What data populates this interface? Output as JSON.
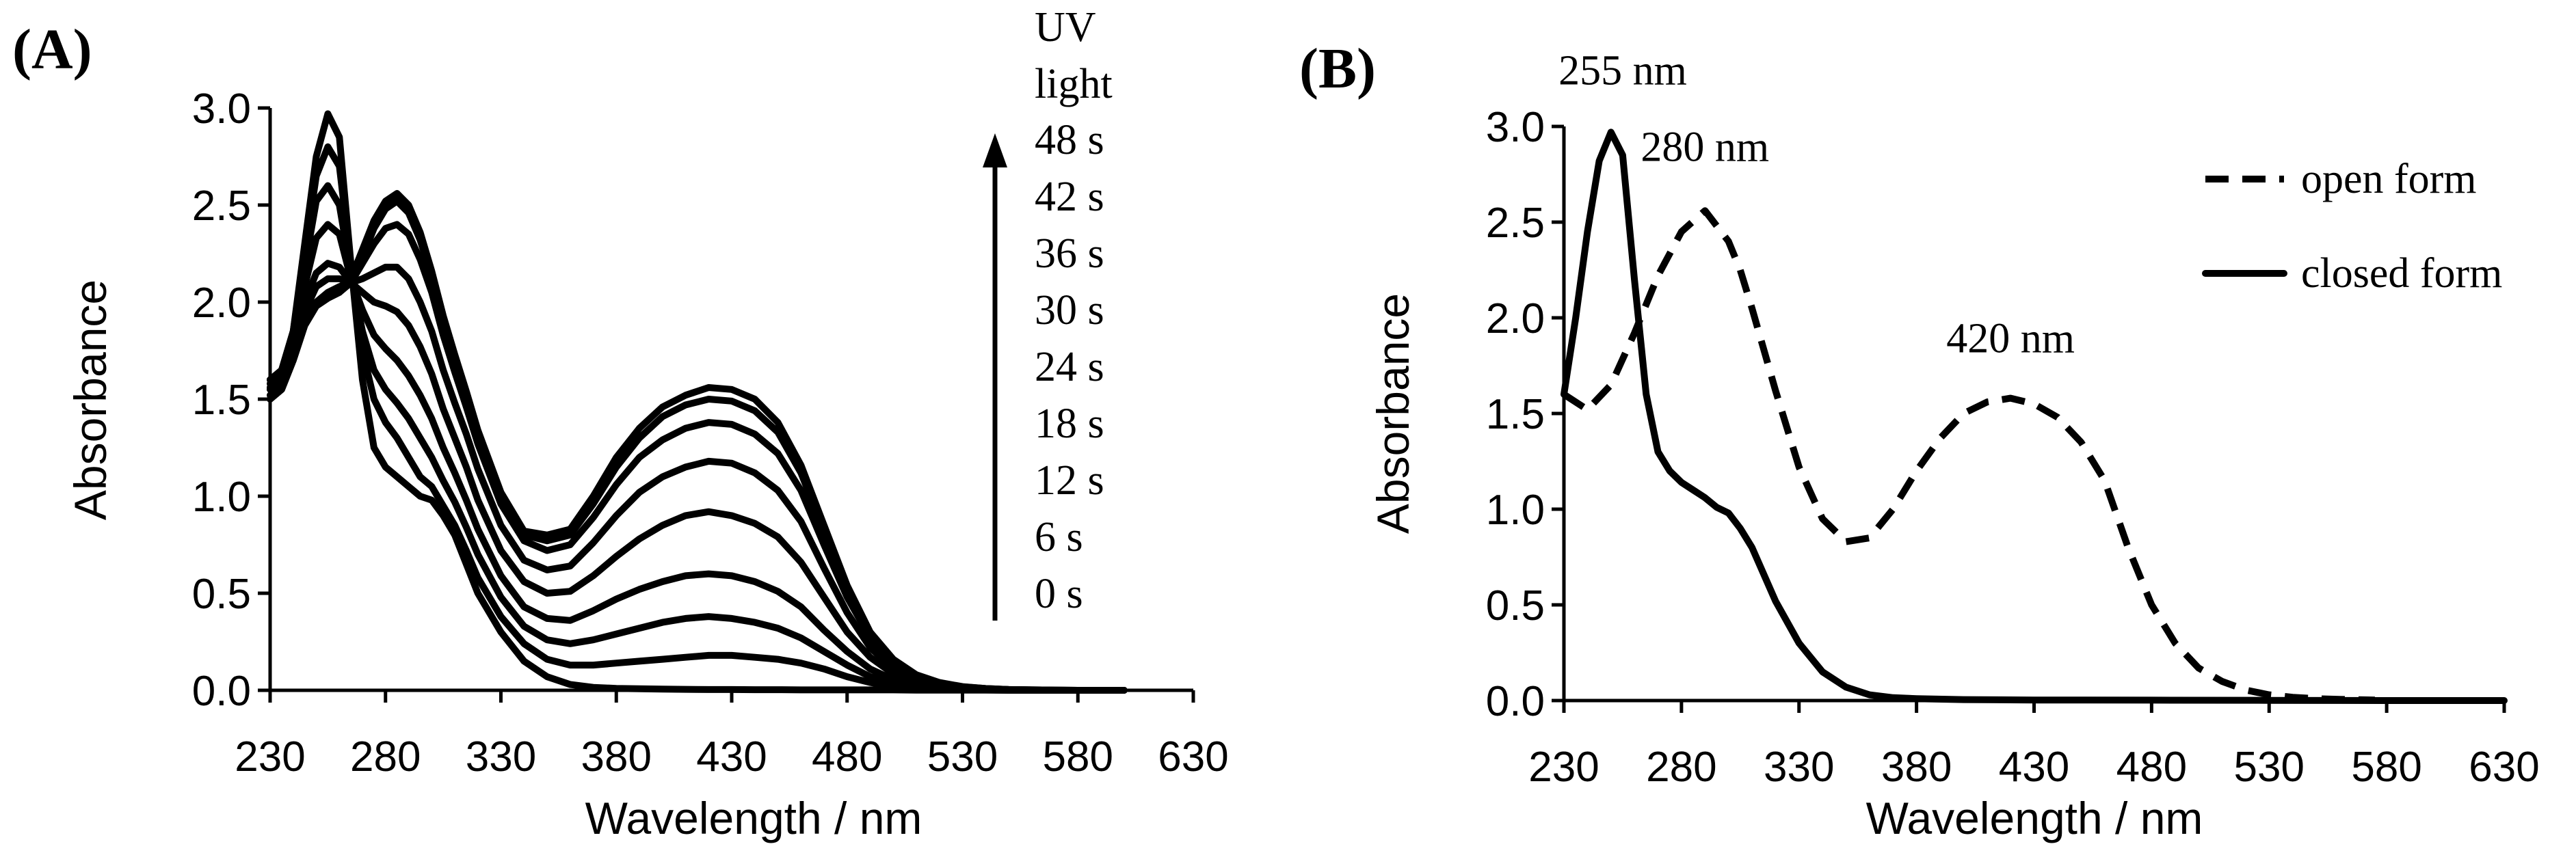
{
  "chart_data": [
    {
      "panel_label": "(A)",
      "type": "line",
      "xlabel": "Wavelength / nm",
      "ylabel": "Absorbance",
      "xlim": [
        230,
        630
      ],
      "ylim": [
        0,
        3.0
      ],
      "xticks": [
        "230",
        "280",
        "330",
        "380",
        "430",
        "480",
        "530",
        "580",
        "630"
      ],
      "yticks": [
        "0.0",
        "0.5",
        "1.0",
        "1.5",
        "2.0",
        "2.5",
        "3.0"
      ],
      "x": [
        230,
        235,
        240,
        245,
        250,
        255,
        260,
        265,
        270,
        275,
        280,
        285,
        290,
        295,
        300,
        305,
        310,
        315,
        320,
        330,
        340,
        350,
        360,
        370,
        380,
        390,
        400,
        410,
        420,
        430,
        440,
        450,
        460,
        470,
        480,
        490,
        500,
        510,
        520,
        530,
        540,
        550,
        560,
        570,
        580,
        590,
        600
      ],
      "series": [
        {
          "name": "0 s",
          "values": [
            1.6,
            1.65,
            1.85,
            2.3,
            2.75,
            2.97,
            2.85,
            2.2,
            1.6,
            1.25,
            1.15,
            1.1,
            1.05,
            1.0,
            0.98,
            0.9,
            0.8,
            0.65,
            0.5,
            0.3,
            0.15,
            0.07,
            0.03,
            0.015,
            0.01,
            0.008,
            0.006,
            0.005,
            0.004,
            0.004,
            0.003,
            0.003,
            0.002,
            0.002,
            0.002,
            0.002,
            0.002,
            0.001,
            0.001,
            0.001,
            0.001,
            0.0,
            0.0,
            0.0,
            0.0,
            0.0,
            0.0
          ]
        },
        {
          "name": "6 s",
          "values": [
            1.6,
            1.65,
            1.85,
            2.25,
            2.65,
            2.8,
            2.7,
            2.2,
            1.75,
            1.5,
            1.38,
            1.3,
            1.2,
            1.1,
            1.05,
            0.95,
            0.85,
            0.72,
            0.58,
            0.38,
            0.24,
            0.16,
            0.13,
            0.13,
            0.14,
            0.15,
            0.16,
            0.17,
            0.18,
            0.18,
            0.17,
            0.16,
            0.14,
            0.11,
            0.07,
            0.04,
            0.02,
            0.01,
            0.005,
            0.003,
            0.002,
            0.001,
            0.0,
            0.0,
            0.0,
            0.0,
            0.0
          ]
        },
        {
          "name": "12 s",
          "values": [
            1.58,
            1.62,
            1.8,
            2.18,
            2.52,
            2.6,
            2.5,
            2.15,
            1.85,
            1.65,
            1.55,
            1.48,
            1.4,
            1.3,
            1.2,
            1.08,
            0.97,
            0.84,
            0.7,
            0.48,
            0.33,
            0.26,
            0.24,
            0.26,
            0.29,
            0.32,
            0.35,
            0.37,
            0.38,
            0.37,
            0.35,
            0.32,
            0.27,
            0.2,
            0.13,
            0.07,
            0.035,
            0.018,
            0.009,
            0.005,
            0.003,
            0.002,
            0.001,
            0.0,
            0.0,
            0.0,
            0.0
          ]
        },
        {
          "name": "18 s",
          "values": [
            1.56,
            1.6,
            1.75,
            2.08,
            2.33,
            2.4,
            2.35,
            2.12,
            1.96,
            1.83,
            1.76,
            1.7,
            1.62,
            1.52,
            1.4,
            1.25,
            1.12,
            0.98,
            0.83,
            0.59,
            0.43,
            0.37,
            0.36,
            0.41,
            0.47,
            0.52,
            0.56,
            0.59,
            0.6,
            0.59,
            0.56,
            0.51,
            0.43,
            0.31,
            0.2,
            0.11,
            0.055,
            0.028,
            0.014,
            0.007,
            0.004,
            0.002,
            0.001,
            0.0,
            0.0,
            0.0,
            0.0
          ]
        },
        {
          "name": "24 s",
          "values": [
            1.55,
            1.58,
            1.72,
            2.0,
            2.15,
            2.2,
            2.18,
            2.1,
            2.05,
            2.0,
            1.98,
            1.95,
            1.88,
            1.77,
            1.63,
            1.45,
            1.3,
            1.15,
            0.98,
            0.72,
            0.56,
            0.5,
            0.51,
            0.59,
            0.69,
            0.78,
            0.85,
            0.9,
            0.92,
            0.9,
            0.86,
            0.79,
            0.66,
            0.48,
            0.3,
            0.17,
            0.085,
            0.042,
            0.021,
            0.01,
            0.005,
            0.003,
            0.001,
            0.0,
            0.0,
            0.0,
            0.0
          ]
        },
        {
          "name": "30 s",
          "values": [
            1.55,
            1.6,
            1.75,
            1.95,
            2.08,
            2.12,
            2.12,
            2.1,
            2.12,
            2.15,
            2.18,
            2.18,
            2.12,
            2.0,
            1.85,
            1.65,
            1.48,
            1.32,
            1.14,
            0.85,
            0.67,
            0.62,
            0.64,
            0.76,
            0.9,
            1.02,
            1.1,
            1.15,
            1.18,
            1.17,
            1.12,
            1.03,
            0.87,
            0.63,
            0.4,
            0.22,
            0.11,
            0.055,
            0.027,
            0.013,
            0.006,
            0.003,
            0.001,
            0.0,
            0.0,
            0.0,
            0.0
          ]
        },
        {
          "name": "36 s",
          "values": [
            1.52,
            1.58,
            1.72,
            1.9,
            2.0,
            2.05,
            2.08,
            2.1,
            2.2,
            2.3,
            2.38,
            2.4,
            2.35,
            2.22,
            2.05,
            1.83,
            1.64,
            1.46,
            1.27,
            0.96,
            0.77,
            0.72,
            0.75,
            0.89,
            1.06,
            1.2,
            1.29,
            1.35,
            1.38,
            1.37,
            1.32,
            1.22,
            1.03,
            0.75,
            0.48,
            0.27,
            0.14,
            0.07,
            0.034,
            0.016,
            0.008,
            0.004,
            0.002,
            0.001,
            0.0,
            0.0,
            0.0
          ]
        },
        {
          "name": "42 s",
          "values": [
            1.5,
            1.55,
            1.7,
            1.88,
            1.98,
            2.02,
            2.05,
            2.1,
            2.23,
            2.38,
            2.48,
            2.52,
            2.46,
            2.32,
            2.13,
            1.9,
            1.7,
            1.52,
            1.32,
            1.0,
            0.8,
            0.77,
            0.8,
            0.96,
            1.15,
            1.3,
            1.41,
            1.47,
            1.5,
            1.49,
            1.44,
            1.33,
            1.12,
            0.82,
            0.52,
            0.29,
            0.15,
            0.075,
            0.037,
            0.018,
            0.009,
            0.004,
            0.002,
            0.001,
            0.0,
            0.0,
            0.0
          ]
        },
        {
          "name": "48 s",
          "values": [
            1.5,
            1.55,
            1.7,
            1.88,
            1.98,
            2.02,
            2.05,
            2.12,
            2.27,
            2.42,
            2.52,
            2.56,
            2.5,
            2.36,
            2.16,
            1.93,
            1.73,
            1.54,
            1.34,
            1.02,
            0.82,
            0.8,
            0.83,
            1.0,
            1.2,
            1.35,
            1.46,
            1.52,
            1.56,
            1.55,
            1.5,
            1.38,
            1.16,
            0.85,
            0.54,
            0.3,
            0.16,
            0.08,
            0.04,
            0.019,
            0.009,
            0.004,
            0.002,
            0.001,
            0.0,
            0.0,
            0.0
          ]
        }
      ],
      "legend_title": [
        "UV",
        "light"
      ],
      "legend_entries": [
        "48 s",
        "42 s",
        "36 s",
        "30 s",
        "24 s",
        "18 s",
        "12 s",
        "6 s",
        "0 s"
      ],
      "legend_position": "top-right"
    },
    {
      "panel_label": "(B)",
      "type": "line",
      "xlabel": "Wavelength / nm",
      "ylabel": "Absorbance",
      "xlim": [
        230,
        630
      ],
      "ylim": [
        0,
        3.0
      ],
      "xticks": [
        "230",
        "280",
        "330",
        "380",
        "430",
        "480",
        "530",
        "580",
        "630"
      ],
      "yticks": [
        "0.0",
        "0.5",
        "1.0",
        "1.5",
        "2.0",
        "2.5",
        "3.0"
      ],
      "series": [
        {
          "name": "open form",
          "style": "dashed",
          "x": [
            230,
            240,
            250,
            260,
            270,
            280,
            290,
            300,
            305,
            310,
            320,
            330,
            340,
            350,
            360,
            370,
            380,
            390,
            400,
            410,
            420,
            430,
            440,
            450,
            460,
            470,
            480,
            490,
            500,
            510,
            520,
            530,
            540,
            550,
            560,
            570,
            575
          ],
          "values": [
            1.6,
            1.52,
            1.65,
            1.92,
            2.22,
            2.45,
            2.56,
            2.4,
            2.25,
            2.05,
            1.62,
            1.22,
            0.95,
            0.83,
            0.85,
            1.0,
            1.2,
            1.37,
            1.5,
            1.56,
            1.58,
            1.55,
            1.48,
            1.35,
            1.15,
            0.8,
            0.5,
            0.3,
            0.17,
            0.1,
            0.055,
            0.03,
            0.017,
            0.01,
            0.006,
            0.004,
            0.003
          ]
        },
        {
          "name": "closed form",
          "style": "solid",
          "x": [
            230,
            235,
            240,
            245,
            250,
            255,
            260,
            265,
            270,
            275,
            280,
            285,
            290,
            295,
            300,
            305,
            310,
            320,
            330,
            340,
            350,
            360,
            370,
            380,
            400,
            430,
            480,
            530,
            580,
            630
          ],
          "values": [
            1.6,
            2.0,
            2.45,
            2.82,
            2.97,
            2.85,
            2.2,
            1.6,
            1.3,
            1.2,
            1.14,
            1.1,
            1.06,
            1.01,
            0.98,
            0.9,
            0.8,
            0.52,
            0.3,
            0.15,
            0.07,
            0.03,
            0.015,
            0.01,
            0.005,
            0.003,
            0.002,
            0.001,
            0.0,
            0.0
          ]
        }
      ],
      "annotations": [
        {
          "text": "255 nm",
          "x": 255,
          "y": 3.22
        },
        {
          "text": "280 nm",
          "x": 290,
          "y": 2.82
        },
        {
          "text": "420 nm",
          "x": 420,
          "y": 1.82
        }
      ],
      "legend_entries": [
        "open form",
        "closed form"
      ],
      "legend_position": "top-right"
    }
  ]
}
